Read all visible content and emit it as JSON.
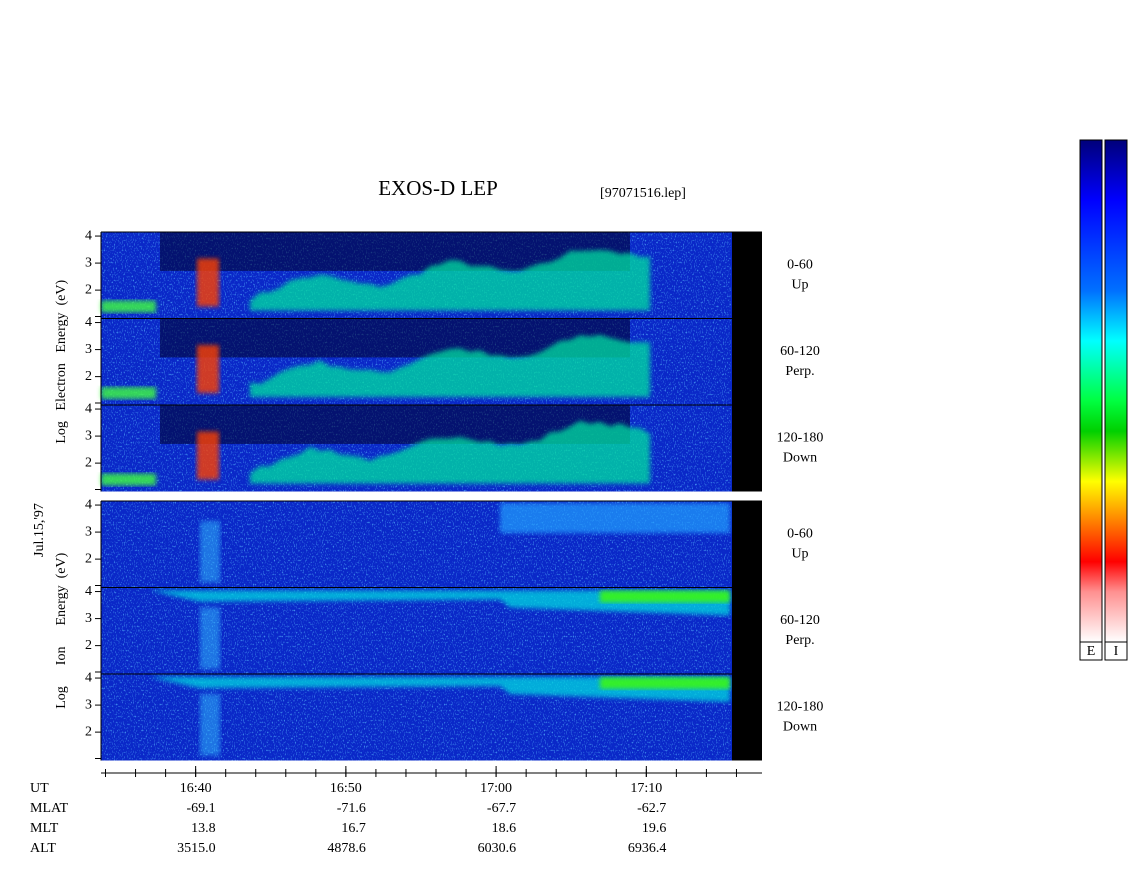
{
  "chart_data": {
    "type": "spectrogram",
    "title": "EXOS-D LEP",
    "file": "[97071516.lep]",
    "date": "Jul.15,'97",
    "xlim": [
      993.7,
      1037.7
    ],
    "xticks": [
      {
        "value": 1000,
        "label": "16:40"
      },
      {
        "value": 1010,
        "label": "16:50"
      },
      {
        "value": 1020,
        "label": "17:00"
      },
      {
        "value": 1030,
        "label": "17:10"
      }
    ],
    "ylim": [
      0.95,
      4.15
    ],
    "yticks": [
      2,
      3,
      4
    ],
    "groups": [
      {
        "ylabel": "Log   Electron   Energy  (eV)",
        "panels": [
          {
            "label": [
              "0-60",
              "Up"
            ]
          },
          {
            "label": [
              "60-120",
              "Perp."
            ]
          },
          {
            "label": [
              "120-180",
              "Down"
            ]
          }
        ]
      },
      {
        "ylabel": "Log      Ion      Energy  (eV)",
        "panels": [
          {
            "label": [
              "0-60",
              "Up"
            ]
          },
          {
            "label": [
              "60-120",
              "Perp."
            ]
          },
          {
            "label": [
              "120-180",
              "Down"
            ]
          }
        ]
      }
    ],
    "ephemeris": {
      "labels": [
        "UT",
        "MLAT",
        "MLT",
        "ALT"
      ],
      "rows": [
        [
          "-69.1",
          "-71.6",
          "-67.7",
          "-62.7"
        ],
        [
          "13.8",
          "16.7",
          "18.6",
          "19.6"
        ],
        [
          "3515.0",
          "4878.6",
          "6030.6",
          "6936.4"
        ]
      ]
    },
    "colorbar_labels": [
      "E",
      "I"
    ]
  }
}
